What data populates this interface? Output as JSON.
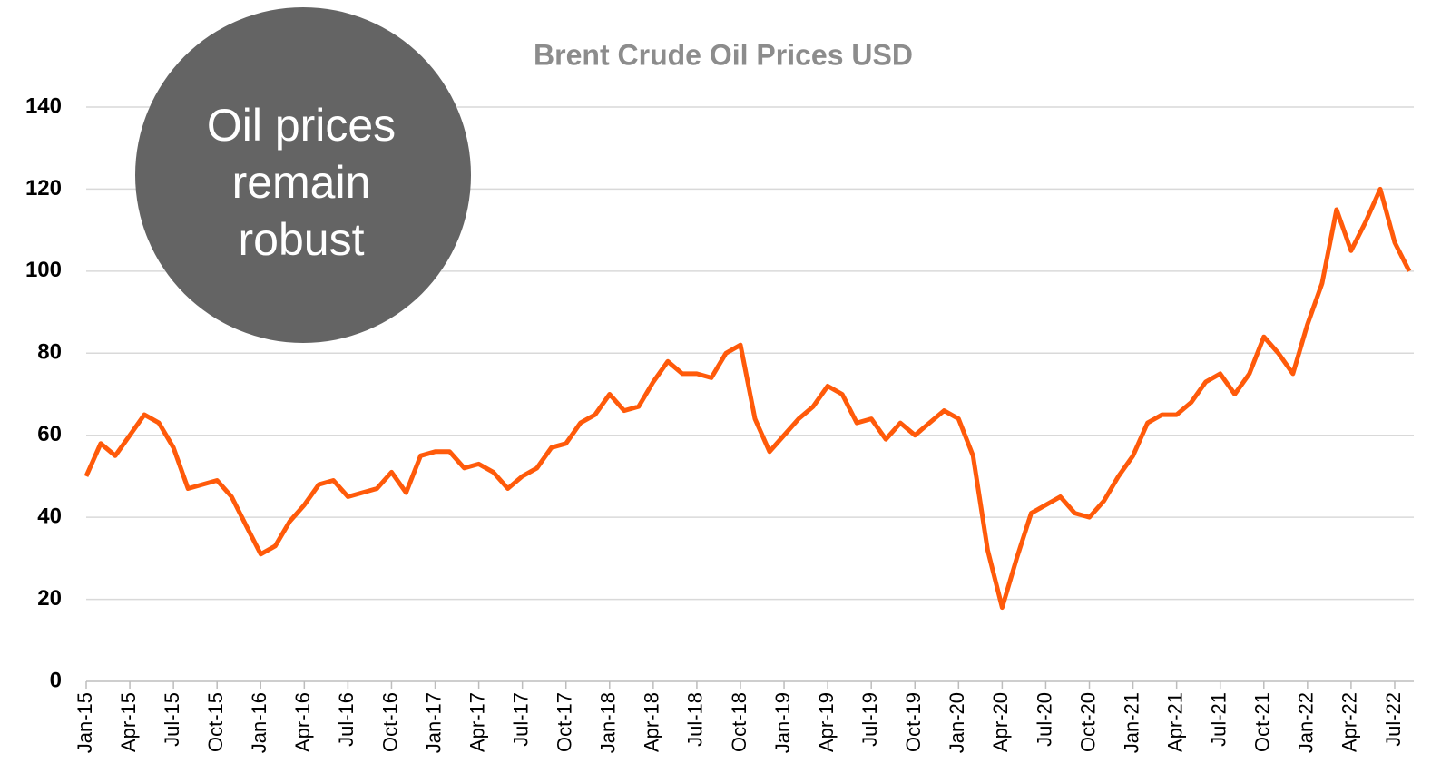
{
  "chart_data": {
    "type": "line",
    "title": "Brent Crude Oil Prices USD",
    "annotation": [
      "Oil prices",
      "remain",
      "robust"
    ],
    "categories": [
      "Jan-15",
      null,
      null,
      "Apr-15",
      null,
      null,
      "Jul-15",
      null,
      null,
      "Oct-15",
      null,
      null,
      "Jan-16",
      null,
      null,
      "Apr-16",
      null,
      null,
      "Jul-16",
      null,
      null,
      "Oct-16",
      null,
      null,
      "Jan-17",
      null,
      null,
      "Apr-17",
      null,
      null,
      "Jul-17",
      null,
      null,
      "Oct-17",
      null,
      null,
      "Jan-18",
      null,
      null,
      "Apr-18",
      null,
      null,
      "Jul-18",
      null,
      null,
      "Oct-18",
      null,
      null,
      "Jan-19",
      null,
      null,
      "Apr-19",
      null,
      null,
      "Jul-19",
      null,
      null,
      "Oct-19",
      null,
      null,
      "Jan-20",
      null,
      null,
      "Apr-20",
      null,
      null,
      "Jul-20",
      null,
      null,
      "Oct-20",
      null,
      null,
      "Jan-21",
      null,
      null,
      "Apr-21",
      null,
      null,
      "Jul-21",
      null,
      null,
      "Oct-21",
      null,
      null,
      "Jan-22",
      null,
      null,
      "Apr-22",
      null,
      null,
      "Jul-22",
      null
    ],
    "series": [
      {
        "name": "Brent",
        "color": "#ff5a0a",
        "values": [
          50,
          58,
          55,
          60,
          65,
          63,
          57,
          47,
          48,
          49,
          45,
          38,
          31,
          33,
          39,
          43,
          48,
          49,
          45,
          46,
          47,
          51,
          46,
          55,
          56,
          56,
          52,
          53,
          51,
          47,
          50,
          52,
          57,
          58,
          63,
          65,
          70,
          66,
          67,
          73,
          78,
          75,
          75,
          74,
          80,
          82,
          64,
          56,
          60,
          64,
          67,
          72,
          70,
          63,
          64,
          59,
          63,
          60,
          63,
          66,
          64,
          55,
          32,
          18,
          30,
          41,
          43,
          45,
          41,
          40,
          44,
          50,
          55,
          63,
          65,
          65,
          68,
          73,
          75,
          70,
          75,
          84,
          80,
          75,
          87,
          97,
          115,
          105,
          112,
          120,
          107,
          100
        ]
      }
    ],
    "ylim": [
      0,
      140
    ],
    "yticks": [
      0,
      20,
      40,
      60,
      80,
      100,
      120,
      140
    ],
    "grid": true
  }
}
